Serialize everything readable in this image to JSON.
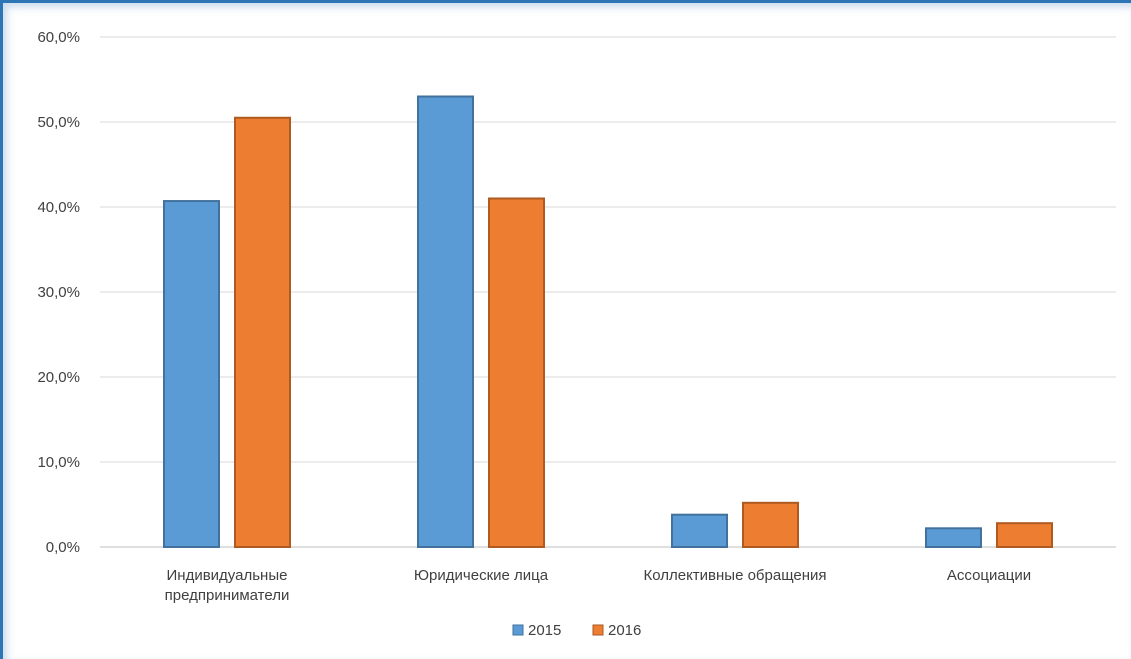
{
  "chart_data": {
    "type": "bar",
    "categories": [
      [
        "Индивидуальные",
        "предприниматели"
      ],
      [
        "Юридические лица"
      ],
      [
        "Коллективные обращения"
      ],
      [
        "Ассоциации"
      ]
    ],
    "series": [
      {
        "name": "2015",
        "color": "#5b9bd5",
        "stroke": "#41719c",
        "values": [
          40.7,
          53.0,
          3.8,
          2.2
        ]
      },
      {
        "name": "2016",
        "color": "#ed7d31",
        "stroke": "#ae5a21",
        "values": [
          50.5,
          41.0,
          5.2,
          2.8
        ]
      }
    ],
    "yticks": [
      "0,0%",
      "10,0%",
      "20,0%",
      "30,0%",
      "40,0%",
      "50,0%",
      "60,0%"
    ],
    "ylim": [
      0,
      60
    ],
    "grid": true,
    "legend_position": "bottom"
  }
}
